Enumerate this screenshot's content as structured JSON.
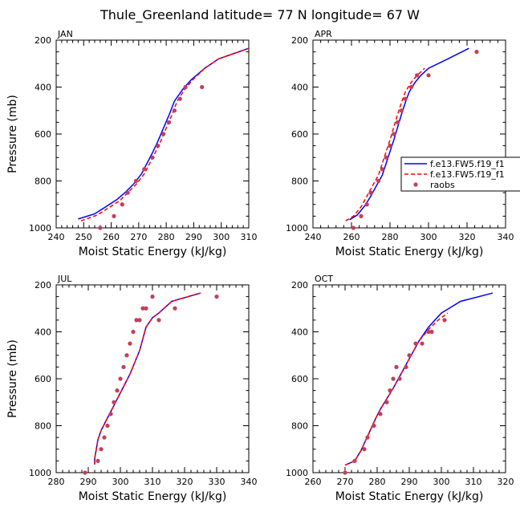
{
  "figure": {
    "title": "Thule_Greenland   latitude= 77 N longitude= 67 W"
  },
  "legend": {
    "entries": [
      {
        "label": "f.e13.FW5.f19_f1",
        "color": "#0000ff",
        "style": "solid",
        "marker": "none"
      },
      {
        "label": "f.e13.FW5.f19_f1",
        "color": "#ff0000",
        "style": "dashed",
        "marker": "none"
      },
      {
        "label": "raobs",
        "color": "#c0405a",
        "style": "none",
        "marker": "dot"
      }
    ]
  },
  "chart_data": [
    {
      "type": "line",
      "panel_label": "JAN",
      "xlabel": "Moist Static Energy (kJ/kg)",
      "ylabel": "Pressure (mb)",
      "xlim": [
        240,
        310
      ],
      "ylim": [
        1000,
        200
      ],
      "xticks": [
        240,
        250,
        260,
        270,
        280,
        290,
        300,
        310
      ],
      "yticks": [
        200,
        400,
        600,
        800,
        1000
      ],
      "series": [
        {
          "name": "f.e13.FW5.f19_f1",
          "color": "#0000ff",
          "style": "solid",
          "x": [
            248,
            254,
            258,
            262,
            265,
            268,
            271,
            273,
            275,
            277,
            279,
            281,
            283,
            286,
            289,
            294,
            299,
            310
          ],
          "y": [
            962,
            940,
            910,
            880,
            850,
            815,
            770,
            725,
            680,
            630,
            575,
            520,
            460,
            410,
            370,
            320,
            280,
            235
          ]
        },
        {
          "name": "f.e13.FW5.f19_f1",
          "color": "#ff0000",
          "style": "dashed",
          "x": [
            249,
            255,
            259,
            263,
            266,
            269,
            272,
            274,
            276,
            278,
            280,
            282,
            284,
            287,
            290,
            294,
            299,
            310
          ],
          "y": [
            970,
            945,
            915,
            885,
            850,
            815,
            770,
            725,
            680,
            630,
            575,
            520,
            460,
            405,
            365,
            320,
            280,
            235
          ]
        },
        {
          "name": "raobs",
          "color": "#c0405a",
          "style": "points",
          "x": [
            256,
            261,
            264,
            266,
            269,
            272,
            275,
            277,
            279,
            281,
            283,
            285,
            287,
            293
          ],
          "y": [
            1000,
            950,
            900,
            850,
            800,
            750,
            700,
            650,
            600,
            550,
            500,
            450,
            400,
            400
          ]
        }
      ]
    },
    {
      "type": "line",
      "panel_label": "APR",
      "xlabel": "Moist Static Energy (kJ/kg)",
      "ylabel": "Pressure (mb)",
      "xlim": [
        240,
        340
      ],
      "ylim": [
        1000,
        200
      ],
      "xticks": [
        240,
        260,
        280,
        300,
        320,
        340
      ],
      "yticks": [
        200,
        400,
        600,
        800,
        1000
      ],
      "series": [
        {
          "name": "f.e13.FW5.f19_f1",
          "color": "#0000ff",
          "style": "solid",
          "x": [
            259,
            263,
            267,
            270,
            273,
            276,
            278,
            280,
            282,
            284,
            286,
            288,
            290,
            293,
            296,
            300,
            310,
            321
          ],
          "y": [
            965,
            945,
            905,
            865,
            820,
            775,
            725,
            675,
            625,
            570,
            515,
            465,
            420,
            380,
            350,
            320,
            280,
            235
          ]
        },
        {
          "name": "f.e13.FW5.f19_f1",
          "color": "#ff0000",
          "style": "dashed",
          "x": [
            257,
            261,
            265,
            268,
            271,
            274,
            276,
            278,
            280,
            282,
            284,
            286,
            288,
            291,
            294,
            298
          ],
          "y": [
            970,
            950,
            910,
            865,
            820,
            775,
            725,
            675,
            625,
            570,
            515,
            465,
            420,
            380,
            350,
            320
          ]
        },
        {
          "name": "raobs",
          "color": "#c0405a",
          "style": "points",
          "x": [
            261,
            265,
            268,
            270,
            274,
            276,
            278,
            280,
            282,
            284,
            286,
            288,
            291,
            294,
            300,
            325
          ],
          "y": [
            1000,
            950,
            900,
            850,
            800,
            750,
            700,
            650,
            600,
            550,
            500,
            450,
            400,
            350,
            350,
            250
          ]
        }
      ]
    },
    {
      "type": "line",
      "panel_label": "JUL",
      "xlabel": "Moist Static Energy (kJ/kg)",
      "ylabel": "Pressure (mb)",
      "xlim": [
        280,
        340
      ],
      "ylim": [
        1000,
        200
      ],
      "xticks": [
        280,
        290,
        300,
        310,
        320,
        330,
        340
      ],
      "yticks": [
        200,
        400,
        600,
        800,
        1000
      ],
      "series": [
        {
          "name": "f.e13.FW5.f19_f1",
          "color": "#0000ff",
          "style": "solid",
          "x": [
            292,
            292,
            292.5,
            293,
            294,
            295.5,
            297,
            298.5,
            300,
            301.5,
            303,
            304.5,
            306,
            307,
            308,
            310,
            312,
            316,
            325
          ],
          "y": [
            965,
            940,
            900,
            860,
            820,
            780,
            740,
            700,
            660,
            620,
            580,
            530,
            480,
            430,
            380,
            340,
            320,
            270,
            235
          ]
        },
        {
          "name": "f.e13.FW5.f19_f1",
          "color": "#ff0000",
          "style": "dashed",
          "x": [
            292,
            292,
            292.5,
            293,
            294,
            295.5,
            297,
            298.5,
            300,
            301.5,
            303,
            304.5,
            306,
            307,
            308,
            310,
            312,
            316,
            325
          ],
          "y": [
            965,
            940,
            900,
            860,
            820,
            780,
            740,
            700,
            660,
            620,
            580,
            530,
            480,
            430,
            380,
            340,
            320,
            270,
            235
          ]
        },
        {
          "name": "raobs",
          "color": "#c0405a",
          "style": "points",
          "x": [
            289,
            293,
            294,
            295,
            296,
            297,
            298,
            299,
            300,
            301,
            302,
            303,
            304,
            305,
            306,
            307,
            308,
            310,
            312,
            317,
            330
          ],
          "y": [
            1000,
            950,
            900,
            850,
            800,
            750,
            700,
            650,
            600,
            550,
            500,
            450,
            400,
            350,
            350,
            300,
            300,
            250,
            350,
            300,
            250
          ]
        }
      ]
    },
    {
      "type": "line",
      "panel_label": "OCT",
      "xlabel": "Moist Static Energy (kJ/kg)",
      "ylabel": "Pressure (mb)",
      "xlim": [
        260,
        320
      ],
      "ylim": [
        1000,
        200
      ],
      "xticks": [
        260,
        270,
        280,
        290,
        300,
        310,
        320
      ],
      "yticks": [
        200,
        400,
        600,
        800,
        1000
      ],
      "series": [
        {
          "name": "f.e13.FW5.f19_f1",
          "color": "#0000ff",
          "style": "solid",
          "x": [
            270,
            273,
            275,
            276.5,
            278,
            279.5,
            281,
            283,
            285,
            287,
            289,
            291,
            293,
            296,
            300,
            306,
            316
          ],
          "y": [
            968,
            950,
            905,
            860,
            815,
            770,
            730,
            685,
            640,
            590,
            540,
            490,
            440,
            380,
            320,
            270,
            235
          ]
        },
        {
          "name": "f.e13.FW5.f19_f1",
          "color": "#ff0000",
          "style": "dashed",
          "x": [
            270,
            273,
            275,
            276.5,
            278,
            279.5,
            281,
            283,
            285,
            287,
            289,
            291,
            293,
            296,
            299,
            302
          ],
          "y": [
            968,
            950,
            905,
            860,
            815,
            770,
            730,
            685,
            640,
            590,
            540,
            490,
            440,
            390,
            350,
            320
          ]
        },
        {
          "name": "raobs",
          "color": "#c0405a",
          "style": "points",
          "x": [
            270,
            273,
            276,
            277,
            279,
            281,
            283,
            284,
            285,
            286,
            287,
            289,
            290,
            292,
            294,
            296,
            297,
            301
          ],
          "y": [
            1000,
            950,
            900,
            850,
            800,
            750,
            700,
            650,
            600,
            550,
            600,
            550,
            500,
            450,
            450,
            400,
            400,
            350
          ]
        }
      ]
    }
  ]
}
